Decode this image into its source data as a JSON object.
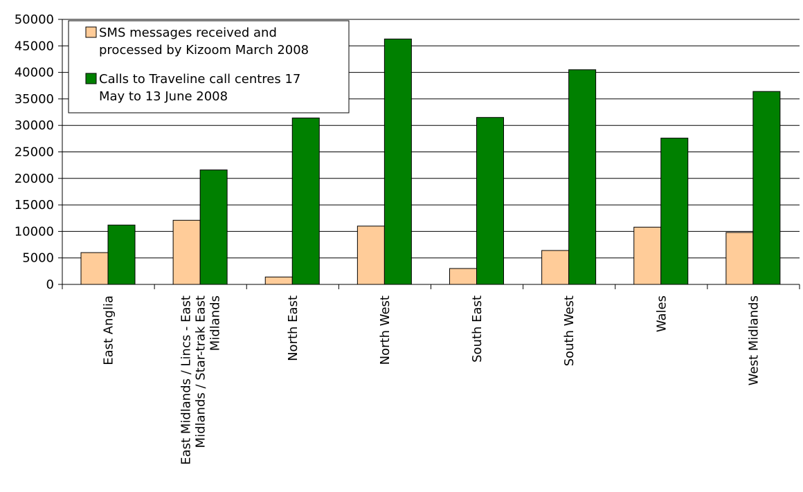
{
  "chart_data": {
    "type": "bar",
    "categories": [
      [
        "East Anglia"
      ],
      [
        "East Midlands / Lincs - East",
        "Midlands / Star-trak East",
        "Midlands"
      ],
      [
        "North East"
      ],
      [
        "North West"
      ],
      [
        "South East"
      ],
      [
        "South West"
      ],
      [
        "Wales"
      ],
      [
        "West Midlands"
      ]
    ],
    "series": [
      {
        "name_lines": [
          "SMS messages received and",
          "processed by Kizoom March 2008"
        ],
        "color": "#FFCC99",
        "values": [
          6000,
          12100,
          1400,
          11000,
          3000,
          6400,
          10800,
          9800
        ]
      },
      {
        "name_lines": [
          "Calls to Traveline call centres 17",
          "May to 13 June 2008"
        ],
        "color": "#008000",
        "values": [
          11200,
          21600,
          31400,
          46300,
          31500,
          40500,
          27600,
          36400
        ]
      }
    ],
    "ylim": [
      0,
      50000
    ],
    "yticks": [
      0,
      5000,
      10000,
      15000,
      20000,
      25000,
      30000,
      35000,
      40000,
      45000,
      50000
    ],
    "grid": true,
    "legend_position": "top-left"
  }
}
